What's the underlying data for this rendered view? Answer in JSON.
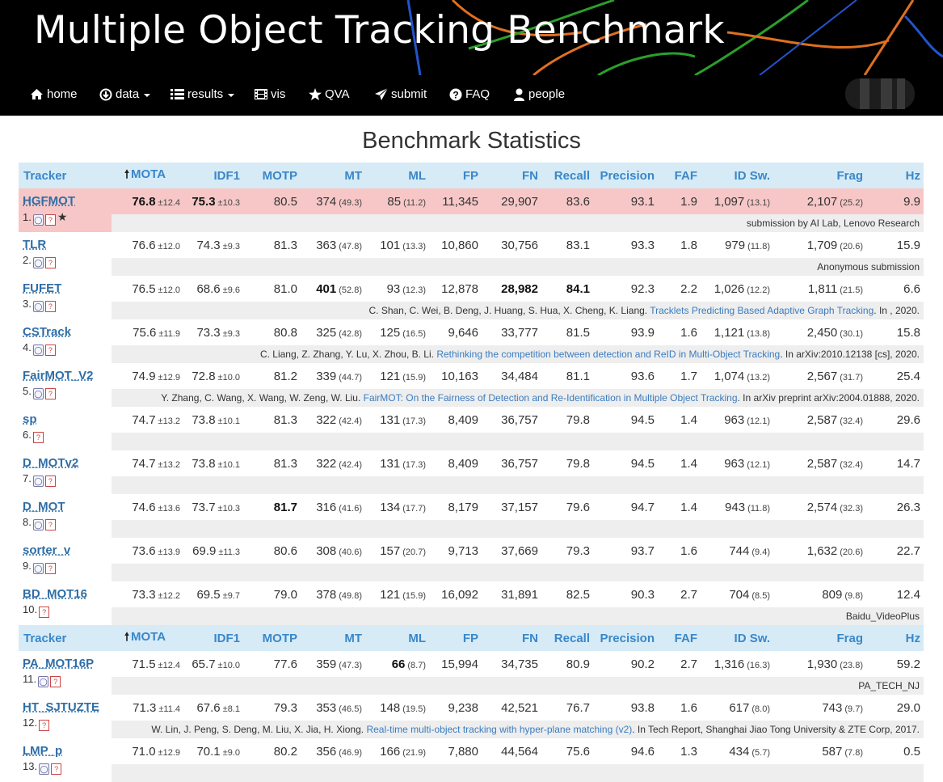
{
  "header": {
    "title": "Multiple Object Tracking Benchmark"
  },
  "nav": {
    "home": "home",
    "data": "data",
    "results": "results",
    "vis": "vis",
    "qva": "QVA",
    "submit": "submit",
    "faq": "FAQ",
    "people": "people"
  },
  "page_title": "Benchmark Statistics",
  "columns": [
    "Tracker",
    "MOTA",
    "IDF1",
    "MOTP",
    "MT",
    "ML",
    "FP",
    "FN",
    "Recall",
    "Precision",
    "FAF",
    "ID Sw.",
    "Frag",
    "Hz"
  ],
  "rows": [
    {
      "name": "HGFMOT",
      "rank": "1.",
      "mota": "76.8",
      "mota_sd": "±12.4",
      "idf1": "75.3",
      "idf1_sd": "±10.3",
      "motp": "80.5",
      "mt": "374",
      "mt_p": "(49.3)",
      "ml": "85",
      "ml_p": "(11.2)",
      "fp": "11,345",
      "fn": "29,907",
      "recall": "83.6",
      "precision": "93.1",
      "faf": "1.9",
      "idsw": "1,097",
      "idsw_p": "(13.1)",
      "frag": "2,107",
      "frag_p": "(25.2)",
      "hz": "9.9",
      "ref_pre": "submission by AI Lab, Lenovo Research",
      "ref_link": "",
      "ref_post": ""
    },
    {
      "name": "TLR",
      "rank": "2.",
      "mota": "76.6",
      "mota_sd": "±12.0",
      "idf1": "74.3",
      "idf1_sd": "±9.3",
      "motp": "81.3",
      "mt": "363",
      "mt_p": "(47.8)",
      "ml": "101",
      "ml_p": "(13.3)",
      "fp": "10,860",
      "fn": "30,756",
      "recall": "83.1",
      "precision": "93.3",
      "faf": "1.8",
      "idsw": "979",
      "idsw_p": "(11.8)",
      "frag": "1,709",
      "frag_p": "(20.6)",
      "hz": "15.9",
      "ref_pre": "Anonymous submission",
      "ref_link": "",
      "ref_post": ""
    },
    {
      "name": "FUFET",
      "rank": "3.",
      "mota": "76.5",
      "mota_sd": "±12.0",
      "idf1": "68.6",
      "idf1_sd": "±9.6",
      "motp": "81.0",
      "mt": "401",
      "mt_p": "(52.8)",
      "ml": "93",
      "ml_p": "(12.3)",
      "fp": "12,878",
      "fn": "28,982",
      "recall": "84.1",
      "precision": "92.3",
      "faf": "2.2",
      "idsw": "1,026",
      "idsw_p": "(12.2)",
      "frag": "1,811",
      "frag_p": "(21.5)",
      "hz": "6.6",
      "ref_pre": "C. Shan, C. Wei, B. Deng, J. Huang, S. Hua, X. Cheng, K. Liang. ",
      "ref_link": "Tracklets Predicting Based Adaptive Graph Tracking",
      "ref_post": ". In , 2020."
    },
    {
      "name": "CSTrack",
      "rank": "4.",
      "mota": "75.6",
      "mota_sd": "±11.9",
      "idf1": "73.3",
      "idf1_sd": "±9.3",
      "motp": "80.8",
      "mt": "325",
      "mt_p": "(42.8)",
      "ml": "125",
      "ml_p": "(16.5)",
      "fp": "9,646",
      "fn": "33,777",
      "recall": "81.5",
      "precision": "93.9",
      "faf": "1.6",
      "idsw": "1,121",
      "idsw_p": "(13.8)",
      "frag": "2,450",
      "frag_p": "(30.1)",
      "hz": "15.8",
      "ref_pre": "C. Liang, Z. Zhang, Y. Lu, X. Zhou, B. Li. ",
      "ref_link": "Rethinking the competition between detection and ReID in Multi-Object Tracking",
      "ref_post": ". In arXiv:2010.12138 [cs], 2020."
    },
    {
      "name": "FairMOT_V2",
      "rank": "5.",
      "mota": "74.9",
      "mota_sd": "±12.9",
      "idf1": "72.8",
      "idf1_sd": "±10.0",
      "motp": "81.2",
      "mt": "339",
      "mt_p": "(44.7)",
      "ml": "121",
      "ml_p": "(15.9)",
      "fp": "10,163",
      "fn": "34,484",
      "recall": "81.1",
      "precision": "93.6",
      "faf": "1.7",
      "idsw": "1,074",
      "idsw_p": "(13.2)",
      "frag": "2,567",
      "frag_p": "(31.7)",
      "hz": "25.4",
      "ref_pre": "Y. Zhang, C. Wang, X. Wang, W. Zeng, W. Liu. ",
      "ref_link": "FairMOT: On the Fairness of Detection and Re-Identification in Multiple Object Tracking",
      "ref_post": ". In arXiv preprint arXiv:2004.01888, 2020."
    },
    {
      "name": "sp",
      "rank": "6.",
      "mota": "74.7",
      "mota_sd": "±13.2",
      "idf1": "73.8",
      "idf1_sd": "±10.1",
      "motp": "81.3",
      "mt": "322",
      "mt_p": "(42.4)",
      "ml": "131",
      "ml_p": "(17.3)",
      "fp": "8,409",
      "fn": "36,757",
      "recall": "79.8",
      "precision": "94.5",
      "faf": "1.4",
      "idsw": "963",
      "idsw_p": "(12.1)",
      "frag": "2,587",
      "frag_p": "(32.4)",
      "hz": "29.6",
      "ref_pre": "",
      "ref_link": "",
      "ref_post": ""
    },
    {
      "name": "D_MOTv2",
      "rank": "7.",
      "mota": "74.7",
      "mota_sd": "±13.2",
      "idf1": "73.8",
      "idf1_sd": "±10.1",
      "motp": "81.3",
      "mt": "322",
      "mt_p": "(42.4)",
      "ml": "131",
      "ml_p": "(17.3)",
      "fp": "8,409",
      "fn": "36,757",
      "recall": "79.8",
      "precision": "94.5",
      "faf": "1.4",
      "idsw": "963",
      "idsw_p": "(12.1)",
      "frag": "2,587",
      "frag_p": "(32.4)",
      "hz": "14.7",
      "ref_pre": "",
      "ref_link": "",
      "ref_post": ""
    },
    {
      "name": "D_MOT",
      "rank": "8.",
      "mota": "74.6",
      "mota_sd": "±13.6",
      "idf1": "73.7",
      "idf1_sd": "±10.3",
      "motp": "81.7",
      "mt": "316",
      "mt_p": "(41.6)",
      "ml": "134",
      "ml_p": "(17.7)",
      "fp": "8,179",
      "fn": "37,157",
      "recall": "79.6",
      "precision": "94.7",
      "faf": "1.4",
      "idsw": "943",
      "idsw_p": "(11.8)",
      "frag": "2,574",
      "frag_p": "(32.3)",
      "hz": "26.3",
      "ref_pre": "",
      "ref_link": "",
      "ref_post": ""
    },
    {
      "name": "sorter_v",
      "rank": "9.",
      "mota": "73.6",
      "mota_sd": "±13.9",
      "idf1": "69.9",
      "idf1_sd": "±11.3",
      "motp": "80.6",
      "mt": "308",
      "mt_p": "(40.6)",
      "ml": "157",
      "ml_p": "(20.7)",
      "fp": "9,713",
      "fn": "37,669",
      "recall": "79.3",
      "precision": "93.7",
      "faf": "1.6",
      "idsw": "744",
      "idsw_p": "(9.4)",
      "frag": "1,632",
      "frag_p": "(20.6)",
      "hz": "22.7",
      "ref_pre": "",
      "ref_link": "",
      "ref_post": ""
    },
    {
      "name": "BD_MOT16",
      "rank": "10.",
      "mota": "73.3",
      "mota_sd": "±12.2",
      "idf1": "69.5",
      "idf1_sd": "±9.7",
      "motp": "79.0",
      "mt": "378",
      "mt_p": "(49.8)",
      "ml": "121",
      "ml_p": "(15.9)",
      "fp": "16,092",
      "fn": "31,891",
      "recall": "82.5",
      "precision": "90.3",
      "faf": "2.7",
      "idsw": "704",
      "idsw_p": "(8.5)",
      "frag": "809",
      "frag_p": "(9.8)",
      "hz": "12.4",
      "ref_pre": "Baidu_VideoPlus",
      "ref_link": "",
      "ref_post": ""
    },
    {
      "name": "PA_MOT16P",
      "rank": "11.",
      "mota": "71.5",
      "mota_sd": "±12.4",
      "idf1": "65.7",
      "idf1_sd": "±10.0",
      "motp": "77.6",
      "mt": "359",
      "mt_p": "(47.3)",
      "ml": "66",
      "ml_p": "(8.7)",
      "fp": "15,994",
      "fn": "34,735",
      "recall": "80.9",
      "precision": "90.2",
      "faf": "2.7",
      "idsw": "1,316",
      "idsw_p": "(16.3)",
      "frag": "1,930",
      "frag_p": "(23.8)",
      "hz": "59.2",
      "ref_pre": "PA_TECH_NJ",
      "ref_link": "",
      "ref_post": ""
    },
    {
      "name": "HT_SJTUZTE",
      "rank": "12.",
      "mota": "71.3",
      "mota_sd": "±11.4",
      "idf1": "67.6",
      "idf1_sd": "±8.1",
      "motp": "79.3",
      "mt": "353",
      "mt_p": "(46.5)",
      "ml": "148",
      "ml_p": "(19.5)",
      "fp": "9,238",
      "fn": "42,521",
      "recall": "76.7",
      "precision": "93.8",
      "faf": "1.6",
      "idsw": "617",
      "idsw_p": "(8.0)",
      "frag": "743",
      "frag_p": "(9.7)",
      "hz": "29.0",
      "ref_pre": "W. Lin, J. Peng, S. Deng, M. Liu, X. Jia, H. Xiong. ",
      "ref_link": "Real-time multi-object tracking with hyper-plane matching (v2)",
      "ref_post": ". In Tech Report, Shanghai Jiao Tong University & ZTE Corp, 2017."
    },
    {
      "name": "LMP_p",
      "rank": "13.",
      "mota": "71.0",
      "mota_sd": "±12.9",
      "idf1": "70.1",
      "idf1_sd": "±9.0",
      "motp": "80.2",
      "mt": "356",
      "mt_p": "(46.9)",
      "ml": "166",
      "ml_p": "(21.9)",
      "fp": "7,880",
      "fn": "44,564",
      "recall": "75.6",
      "precision": "94.6",
      "faf": "1.3",
      "idsw": "434",
      "idsw_p": "(5.7)",
      "frag": "587",
      "frag_p": "(7.8)",
      "hz": "0.5",
      "ref_pre": "",
      "ref_link": "",
      "ref_post": ""
    }
  ],
  "colors": {
    "highlight": "#f7c7c7",
    "header_bg": "#d6ebf6",
    "header_text": "#3a87c9",
    "link": "#2f6ea6"
  }
}
